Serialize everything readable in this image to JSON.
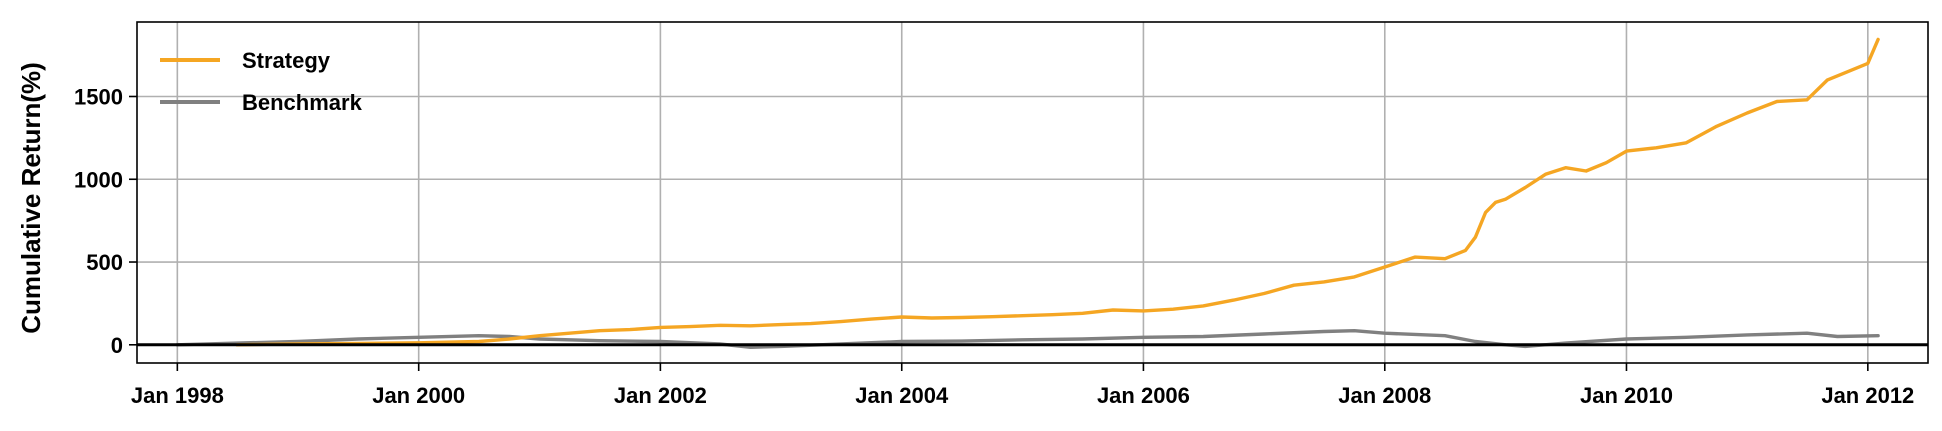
{
  "chart_data": {
    "type": "line",
    "title": "",
    "xlabel": "",
    "ylabel": "Cumulative Return(%)",
    "xlim": [
      "1997-09-01",
      "2012-07-01"
    ],
    "ylim": [
      -110,
      1950
    ],
    "x_ticks": [
      {
        "date": "1998-01-01",
        "label": "Jan 1998"
      },
      {
        "date": "2000-01-01",
        "label": "Jan 2000"
      },
      {
        "date": "2002-01-01",
        "label": "Jan 2002"
      },
      {
        "date": "2004-01-01",
        "label": "Jan 2004"
      },
      {
        "date": "2006-01-01",
        "label": "Jan 2006"
      },
      {
        "date": "2008-01-01",
        "label": "Jan 2008"
      },
      {
        "date": "2010-01-01",
        "label": "Jan 2010"
      },
      {
        "date": "2012-01-01",
        "label": "Jan 2012"
      }
    ],
    "y_ticks": [
      0,
      500,
      1000,
      1500
    ],
    "grid": true,
    "zero_line": true,
    "legend": "top-left",
    "series": [
      {
        "name": "Strategy",
        "color": "#F5A623",
        "points": [
          [
            "1998-07-01",
            0
          ],
          [
            "1998-10-01",
            3
          ],
          [
            "1999-01-01",
            5
          ],
          [
            "1999-07-01",
            8
          ],
          [
            "2000-01-01",
            12
          ],
          [
            "2000-07-01",
            20
          ],
          [
            "2000-10-01",
            35
          ],
          [
            "2001-01-01",
            55
          ],
          [
            "2001-04-01",
            70
          ],
          [
            "2001-07-01",
            85
          ],
          [
            "2001-10-01",
            92
          ],
          [
            "2002-01-01",
            105
          ],
          [
            "2002-04-01",
            110
          ],
          [
            "2002-07-01",
            118
          ],
          [
            "2002-10-01",
            115
          ],
          [
            "2003-01-01",
            122
          ],
          [
            "2003-04-01",
            128
          ],
          [
            "2003-07-01",
            140
          ],
          [
            "2003-10-01",
            155
          ],
          [
            "2004-01-01",
            168
          ],
          [
            "2004-04-01",
            162
          ],
          [
            "2004-07-01",
            165
          ],
          [
            "2004-10-01",
            170
          ],
          [
            "2005-01-01",
            176
          ],
          [
            "2005-04-01",
            182
          ],
          [
            "2005-07-01",
            190
          ],
          [
            "2005-10-01",
            210
          ],
          [
            "2006-01-01",
            205
          ],
          [
            "2006-04-01",
            215
          ],
          [
            "2006-07-01",
            235
          ],
          [
            "2006-10-01",
            270
          ],
          [
            "2007-01-01",
            310
          ],
          [
            "2007-04-01",
            360
          ],
          [
            "2007-07-01",
            380
          ],
          [
            "2007-10-01",
            410
          ],
          [
            "2008-01-01",
            470
          ],
          [
            "2008-04-01",
            530
          ],
          [
            "2008-07-01",
            520
          ],
          [
            "2008-09-01",
            570
          ],
          [
            "2008-10-01",
            650
          ],
          [
            "2008-11-01",
            800
          ],
          [
            "2008-12-01",
            860
          ],
          [
            "2009-01-01",
            880
          ],
          [
            "2009-03-01",
            950
          ],
          [
            "2009-05-01",
            1030
          ],
          [
            "2009-07-01",
            1070
          ],
          [
            "2009-09-01",
            1050
          ],
          [
            "2009-11-01",
            1100
          ],
          [
            "2010-01-01",
            1170
          ],
          [
            "2010-04-01",
            1190
          ],
          [
            "2010-07-01",
            1220
          ],
          [
            "2010-10-01",
            1320
          ],
          [
            "2011-01-01",
            1400
          ],
          [
            "2011-04-01",
            1470
          ],
          [
            "2011-07-01",
            1480
          ],
          [
            "2011-09-01",
            1600
          ],
          [
            "2011-11-01",
            1650
          ],
          [
            "2012-01-01",
            1700
          ],
          [
            "2012-02-01",
            1845
          ]
        ]
      },
      {
        "name": "Benchmark",
        "color": "#808080",
        "points": [
          [
            "1998-01-01",
            0
          ],
          [
            "1998-07-01",
            10
          ],
          [
            "1999-01-01",
            20
          ],
          [
            "1999-07-01",
            35
          ],
          [
            "2000-01-01",
            45
          ],
          [
            "2000-07-01",
            55
          ],
          [
            "2000-10-01",
            50
          ],
          [
            "2001-01-01",
            35
          ],
          [
            "2001-07-01",
            25
          ],
          [
            "2002-01-01",
            20
          ],
          [
            "2002-07-01",
            5
          ],
          [
            "2002-10-01",
            -15
          ],
          [
            "2003-01-01",
            -10
          ],
          [
            "2003-07-01",
            5
          ],
          [
            "2004-01-01",
            20
          ],
          [
            "2004-07-01",
            22
          ],
          [
            "2005-01-01",
            30
          ],
          [
            "2005-07-01",
            35
          ],
          [
            "2006-01-01",
            45
          ],
          [
            "2006-07-01",
            50
          ],
          [
            "2007-01-01",
            65
          ],
          [
            "2007-07-01",
            80
          ],
          [
            "2007-10-01",
            85
          ],
          [
            "2008-01-01",
            70
          ],
          [
            "2008-07-01",
            55
          ],
          [
            "2008-10-01",
            20
          ],
          [
            "2009-01-01",
            0
          ],
          [
            "2009-03-01",
            -10
          ],
          [
            "2009-07-01",
            10
          ],
          [
            "2010-01-01",
            35
          ],
          [
            "2010-07-01",
            45
          ],
          [
            "2011-01-01",
            60
          ],
          [
            "2011-07-01",
            70
          ],
          [
            "2011-10-01",
            50
          ],
          [
            "2012-02-01",
            55
          ]
        ]
      }
    ]
  }
}
